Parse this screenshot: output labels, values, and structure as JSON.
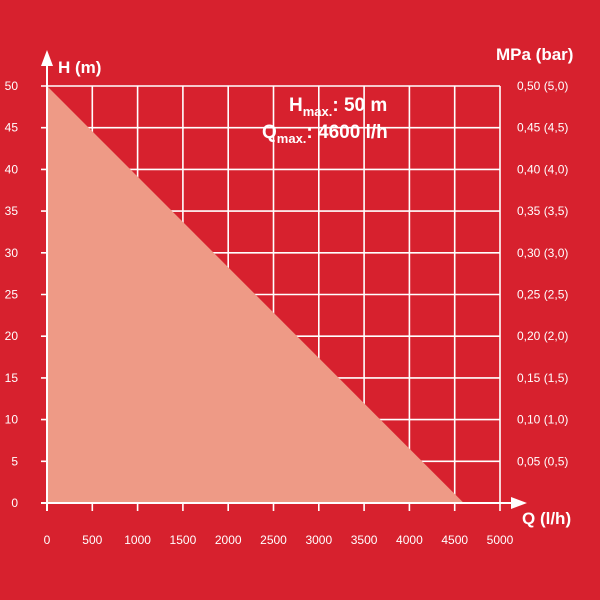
{
  "chart_data": {
    "type": "area",
    "xlabel": "Q (l/h)",
    "ylabel": "H (m)",
    "y2label": "MPa (bar)",
    "x_ticks": [
      0,
      500,
      1000,
      1500,
      2000,
      2500,
      3000,
      3500,
      4000,
      4500,
      5000
    ],
    "y_ticks": [
      0,
      5,
      10,
      15,
      20,
      25,
      30,
      35,
      40,
      45,
      50
    ],
    "y2_ticks": [
      "",
      "0,05 (0,5)",
      "0,10 (1,0)",
      "0,15 (1,5)",
      "0,20 (2,0)",
      "0,25 (2,5)",
      "0,30 (3,0)",
      "0,35 (3,5)",
      "0,40 (4,0)",
      "0,45 (4,5)",
      "0,50 (5,0)"
    ],
    "xlim": [
      0,
      5000
    ],
    "ylim": [
      0,
      50
    ],
    "grid": true,
    "series": [
      {
        "x": [
          0,
          4600
        ],
        "y": [
          50,
          0
        ]
      }
    ],
    "annotations": [
      {
        "main": "H",
        "sub": "max.",
        "text": ": 50 m"
      },
      {
        "main": "Q",
        "sub": "max.",
        "text": ": 4600 l/h"
      }
    ],
    "colors": {
      "background": "#d7212e",
      "area_fill": "#ee9a86",
      "grid": "#ffffff",
      "text": "#ffffff"
    }
  }
}
